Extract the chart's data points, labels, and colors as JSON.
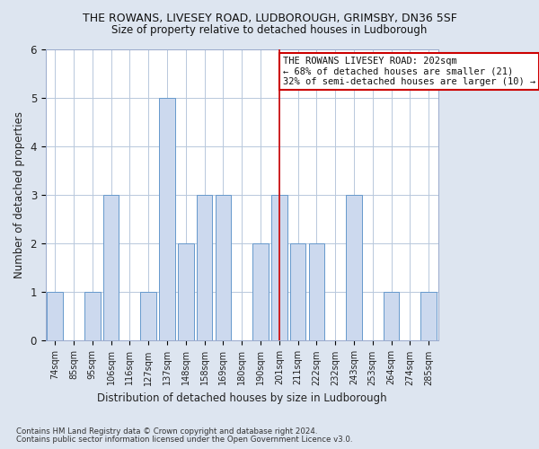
{
  "title1": "THE ROWANS, LIVESEY ROAD, LUDBOROUGH, GRIMSBY, DN36 5SF",
  "title2": "Size of property relative to detached houses in Ludborough",
  "xlabel": "Distribution of detached houses by size in Ludborough",
  "ylabel": "Number of detached properties",
  "footer1": "Contains HM Land Registry data © Crown copyright and database right 2024.",
  "footer2": "Contains public sector information licensed under the Open Government Licence v3.0.",
  "annotation_line1": "THE ROWANS LIVESEY ROAD: 202sqm",
  "annotation_line2": "← 68% of detached houses are smaller (21)",
  "annotation_line3": "32% of semi-detached houses are larger (10) →",
  "bar_labels": [
    "74sqm",
    "85sqm",
    "95sqm",
    "106sqm",
    "116sqm",
    "127sqm",
    "137sqm",
    "148sqm",
    "158sqm",
    "169sqm",
    "180sqm",
    "190sqm",
    "201sqm",
    "211sqm",
    "222sqm",
    "232sqm",
    "243sqm",
    "253sqm",
    "264sqm",
    "274sqm",
    "285sqm"
  ],
  "bar_values": [
    1,
    0,
    1,
    3,
    0,
    1,
    5,
    2,
    3,
    3,
    0,
    2,
    3,
    2,
    2,
    0,
    3,
    0,
    1,
    0,
    1
  ],
  "bar_color": "#ccd9ee",
  "bar_edge_color": "#6699cc",
  "marker_index": 12,
  "marker_color": "#cc0000",
  "bg_color": "#dde5f0",
  "plot_bg_color": "#ffffff",
  "grid_color": "#b8c8dc",
  "annotation_box_edge": "#cc0000",
  "ylim": [
    0,
    6
  ],
  "yticks": [
    0,
    1,
    2,
    3,
    4,
    5,
    6
  ]
}
